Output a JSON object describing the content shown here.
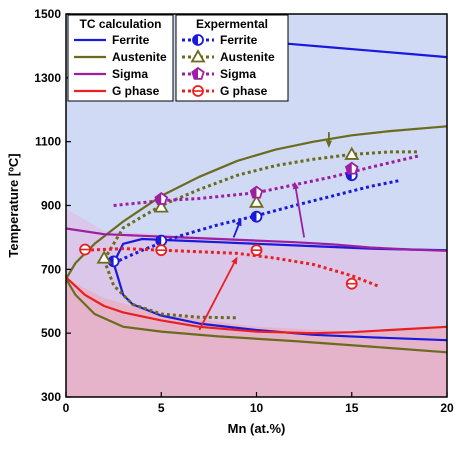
{
  "chart_data": {
    "type": "line",
    "title": "",
    "xlabel": "Mn (at.%)",
    "ylabel": "Temperature [ºC]",
    "xlim": [
      0,
      20
    ],
    "ylim": [
      300,
      1500
    ],
    "x_ticks": [
      0,
      5,
      10,
      15,
      20
    ],
    "y_ticks": [
      300,
      500,
      700,
      900,
      1100,
      1300,
      1500
    ],
    "grid": false,
    "legend_placement": "top-left",
    "legend_groups": [
      {
        "title": "TC calculation",
        "entries": [
          {
            "label": "Ferrite",
            "color": "#1a1adb",
            "style": "solid"
          },
          {
            "label": "Austenite",
            "color": "#6b6b1e",
            "style": "solid"
          },
          {
            "label": "Sigma",
            "color": "#9b1fa0",
            "style": "solid"
          },
          {
            "label": "G phase",
            "color": "#e82020",
            "style": "solid"
          }
        ]
      },
      {
        "title": "Expermental",
        "entries": [
          {
            "label": "Ferrite",
            "color": "#1a1adb",
            "style": "dotted",
            "marker": "circle-half"
          },
          {
            "label": "Austenite",
            "color": "#6b6b1e",
            "style": "dotted",
            "marker": "triangle"
          },
          {
            "label": "Sigma",
            "color": "#9b1fa0",
            "style": "dotted",
            "marker": "pentagon"
          },
          {
            "label": "G phase",
            "color": "#e82020",
            "style": "dotted",
            "marker": "circle-cross"
          }
        ]
      }
    ],
    "regions": [
      {
        "name": "ferrite-region",
        "color": "#c9d3f2",
        "points": [
          [
            0,
            1500
          ],
          [
            20,
            1500
          ],
          [
            20,
            300
          ],
          [
            0,
            300
          ]
        ]
      },
      {
        "name": "sigma-region",
        "color": "#dcc3e6",
        "points": [
          [
            0,
            890
          ],
          [
            2,
            820
          ],
          [
            8,
            800
          ],
          [
            14,
            780
          ],
          [
            20,
            760
          ],
          [
            20,
            300
          ],
          [
            0,
            300
          ]
        ]
      },
      {
        "name": "g-phase-region",
        "color": "#e8b0c4",
        "points": [
          [
            0,
            670
          ],
          [
            2,
            610
          ],
          [
            5,
            560
          ],
          [
            10,
            520
          ],
          [
            15,
            505
          ],
          [
            20,
            520
          ],
          [
            20,
            300
          ],
          [
            0,
            300
          ]
        ]
      }
    ],
    "series": [
      {
        "name": "Ferrite",
        "group": "TC calculation",
        "color": "#1a1adb",
        "style": "solid",
        "segments": [
          [
            [
              10,
              1415
            ],
            [
              12,
              1405
            ],
            [
              14,
              1395
            ],
            [
              16,
              1385
            ],
            [
              18,
              1375
            ],
            [
              20,
              1365
            ]
          ],
          [
            [
              2.5,
              720
            ],
            [
              3,
              780
            ],
            [
              4,
              795
            ],
            [
              6,
              790
            ],
            [
              8,
              785
            ],
            [
              10,
              780
            ],
            [
              12,
              775
            ],
            [
              14,
              770
            ],
            [
              16,
              765
            ],
            [
              18,
              762
            ],
            [
              20,
              760
            ]
          ],
          [
            [
              2.5,
              720
            ],
            [
              3,
              620
            ],
            [
              3.5,
              590
            ],
            [
              5,
              555
            ],
            [
              7,
              530
            ],
            [
              10,
              510
            ],
            [
              13,
              495
            ],
            [
              16,
              487
            ],
            [
              20,
              478
            ]
          ]
        ]
      },
      {
        "name": "Austenite",
        "group": "TC calculation",
        "color": "#6b6b1e",
        "style": "solid",
        "segments": [
          [
            [
              0,
              670
            ],
            [
              0.5,
              720
            ],
            [
              1.5,
              780
            ],
            [
              3,
              850
            ],
            [
              5,
              930
            ],
            [
              7,
              990
            ],
            [
              9,
              1040
            ],
            [
              11,
              1075
            ],
            [
              13,
              1100
            ],
            [
              15,
              1120
            ],
            [
              17,
              1133
            ],
            [
              20,
              1148
            ]
          ],
          [
            [
              0,
              670
            ],
            [
              0.5,
              620
            ],
            [
              1.5,
              560
            ],
            [
              3,
              520
            ],
            [
              5,
              505
            ],
            [
              8,
              490
            ],
            [
              12,
              475
            ],
            [
              16,
              458
            ],
            [
              20,
              440
            ]
          ]
        ]
      },
      {
        "name": "Sigma",
        "group": "TC calculation",
        "color": "#9b1fa0",
        "style": "solid",
        "segments": [
          [
            [
              0,
              828
            ],
            [
              2,
              810
            ],
            [
              4,
              805
            ],
            [
              6,
              800
            ],
            [
              8,
              795
            ],
            [
              10,
              790
            ],
            [
              12,
              785
            ],
            [
              14,
              778
            ],
            [
              16,
              768
            ],
            [
              18,
              762
            ],
            [
              20,
              758
            ]
          ]
        ]
      },
      {
        "name": "G phase",
        "group": "TC calculation",
        "color": "#e82020",
        "style": "solid",
        "segments": [
          [
            [
              0,
              675
            ],
            [
              1,
              620
            ],
            [
              2,
              585
            ],
            [
              3,
              565
            ],
            [
              5,
              540
            ],
            [
              7,
              520
            ],
            [
              10,
              505
            ],
            [
              13,
              500
            ],
            [
              15,
              503
            ],
            [
              17,
              510
            ],
            [
              20,
              520
            ]
          ]
        ]
      },
      {
        "name": "Ferrite",
        "group": "Expermental",
        "color": "#1a1adb",
        "style": "dotted",
        "segments": [
          [
            [
              2.5,
              720
            ],
            [
              4,
              760
            ],
            [
              6,
              805
            ],
            [
              8,
              840
            ],
            [
              10,
              868
            ],
            [
              12,
              900
            ],
            [
              14,
              930
            ],
            [
              16,
              960
            ],
            [
              17.5,
              978
            ]
          ]
        ]
      },
      {
        "name": "Austenite",
        "group": "Expermental",
        "color": "#6b6b1e",
        "style": "dotted",
        "segments": [
          [
            [
              2,
              730
            ],
            [
              3,
              830
            ],
            [
              5,
              900
            ],
            [
              7,
              950
            ],
            [
              9,
              995
            ],
            [
              11,
              1025
            ],
            [
              13,
              1045
            ],
            [
              15,
              1060
            ],
            [
              17,
              1068
            ],
            [
              18.5,
              1068
            ]
          ],
          [
            [
              2,
              730
            ],
            [
              2.5,
              650
            ],
            [
              3.5,
              590
            ],
            [
              5,
              560
            ],
            [
              7,
              550
            ],
            [
              9,
              548
            ]
          ]
        ]
      },
      {
        "name": "Sigma",
        "group": "Expermental",
        "color": "#9b1fa0",
        "style": "dotted",
        "segments": [
          [
            [
              2.5,
              900
            ],
            [
              5,
              915
            ],
            [
              7,
              922
            ],
            [
              10,
              940
            ],
            [
              12,
              965
            ],
            [
              14,
              990
            ],
            [
              16,
              1020
            ],
            [
              18.5,
              1055
            ]
          ]
        ]
      },
      {
        "name": "G phase",
        "group": "Expermental",
        "color": "#e82020",
        "style": "dotted",
        "segments": [
          [
            [
              1,
              760
            ],
            [
              3,
              765
            ],
            [
              5,
              760
            ],
            [
              7,
              755
            ],
            [
              9,
              750
            ],
            [
              11,
              735
            ],
            [
              13,
              715
            ],
            [
              15,
              680
            ],
            [
              16.5,
              645
            ]
          ]
        ]
      }
    ],
    "markers": [
      {
        "series": "Ferrite",
        "shape": "circle-half",
        "color": "#1a1adb",
        "points": [
          [
            2.5,
            725
          ],
          [
            5,
            790
          ],
          [
            10,
            865
          ],
          [
            15,
            995
          ]
        ]
      },
      {
        "series": "Austenite",
        "shape": "triangle",
        "color": "#6b6b1e",
        "points": [
          [
            2,
            735
          ],
          [
            5,
            895
          ],
          [
            10,
            910
          ],
          [
            15,
            1060
          ]
        ]
      },
      {
        "series": "Sigma",
        "shape": "pentagon",
        "color": "#9b1fa0",
        "points": [
          [
            5,
            920
          ],
          [
            10,
            940
          ],
          [
            15,
            1015
          ]
        ]
      },
      {
        "series": "G phase",
        "shape": "circle-cross",
        "color": "#e82020",
        "points": [
          [
            1,
            762
          ],
          [
            5,
            760
          ],
          [
            10,
            760
          ],
          [
            15,
            655
          ]
        ]
      }
    ],
    "arrows": [
      {
        "color": "#e82020",
        "from": [
          7,
          510
        ],
        "to": [
          9,
          740
        ]
      },
      {
        "color": "#9b1fa0",
        "from": [
          12.5,
          800
        ],
        "to": [
          12,
          975
        ]
      },
      {
        "color": "#1a1adb",
        "from": [
          8.8,
          800
        ],
        "to": [
          9.2,
          860
        ]
      },
      {
        "color": "#6b6b1e",
        "from": [
          13.8,
          1130
        ],
        "to": [
          13.8,
          1080
        ]
      }
    ]
  }
}
